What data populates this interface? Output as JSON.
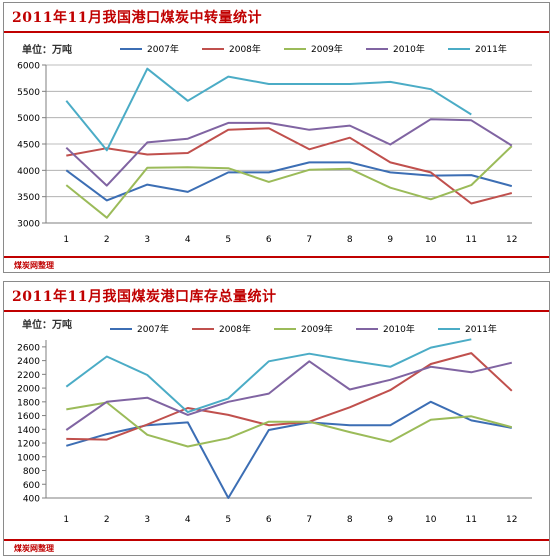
{
  "footer_text": "煤炭网整理",
  "chart_data": [
    {
      "type": "line",
      "title": "2011年11月我国港口煤炭中转量统计",
      "unit": "单位：万吨",
      "xlabel": "",
      "ylabel": "",
      "categories": [
        "1",
        "2",
        "3",
        "4",
        "5",
        "6",
        "7",
        "8",
        "9",
        "10",
        "11",
        "12"
      ],
      "ylim": [
        3000,
        6000
      ],
      "yticks": [
        3000,
        3500,
        4000,
        4500,
        5000,
        5500,
        6000
      ],
      "grid": true,
      "legend": "top",
      "series": [
        {
          "name": "2007年",
          "color": "#3c6eb4",
          "values": [
            4000,
            3430,
            3730,
            3590,
            3960,
            3960,
            4150,
            4150,
            3960,
            3900,
            3910,
            3700
          ]
        },
        {
          "name": "2008年",
          "color": "#c0504d",
          "values": [
            4280,
            4420,
            4300,
            4330,
            4770,
            4800,
            4400,
            4620,
            4150,
            3960,
            3370,
            3570
          ]
        },
        {
          "name": "2009年",
          "color": "#9bbb59",
          "values": [
            3720,
            3100,
            4050,
            4060,
            4040,
            3780,
            4010,
            4030,
            3670,
            3450,
            3720,
            4460
          ]
        },
        {
          "name": "2010年",
          "color": "#8064a2",
          "values": [
            4430,
            3710,
            4530,
            4600,
            4900,
            4900,
            4770,
            4850,
            4490,
            4970,
            4950,
            4470
          ]
        },
        {
          "name": "2011年",
          "color": "#4bacc6",
          "values": [
            5320,
            4380,
            5930,
            5320,
            5780,
            5640,
            5640,
            5640,
            5680,
            5540,
            5060,
            null
          ]
        }
      ]
    },
    {
      "type": "line",
      "title": "2011年11月我国煤炭港口库存总量统计",
      "unit": "单位：万吨",
      "xlabel": "",
      "ylabel": "",
      "categories": [
        "1",
        "2",
        "3",
        "4",
        "5",
        "6",
        "7",
        "8",
        "9",
        "10",
        "11",
        "12"
      ],
      "ylim": [
        400,
        2700
      ],
      "yticks": [
        400,
        600,
        800,
        1000,
        1200,
        1400,
        1600,
        1800,
        2000,
        2200,
        2400,
        2600
      ],
      "grid": false,
      "legend": "top",
      "series": [
        {
          "name": "2007年",
          "color": "#3c6eb4",
          "values": [
            1160,
            1330,
            1460,
            1500,
            400,
            1390,
            1500,
            1460,
            1460,
            1800,
            1530,
            1420
          ]
        },
        {
          "name": "2008年",
          "color": "#c0504d",
          "values": [
            1260,
            1250,
            1470,
            1710,
            1610,
            1460,
            1510,
            1720,
            1970,
            2350,
            2510,
            1960
          ]
        },
        {
          "name": "2009年",
          "color": "#9bbb59",
          "values": [
            1690,
            1790,
            1320,
            1150,
            1270,
            1510,
            1510,
            1360,
            1220,
            1540,
            1590,
            1430
          ]
        },
        {
          "name": "2010年",
          "color": "#8064a2",
          "values": [
            1390,
            1800,
            1860,
            1610,
            1800,
            1920,
            2390,
            1980,
            2120,
            2310,
            2230,
            2370
          ]
        },
        {
          "name": "2011年",
          "color": "#4bacc6",
          "values": [
            2020,
            2460,
            2190,
            1650,
            1850,
            2390,
            2500,
            2400,
            2310,
            2590,
            2710,
            null
          ]
        }
      ]
    }
  ]
}
